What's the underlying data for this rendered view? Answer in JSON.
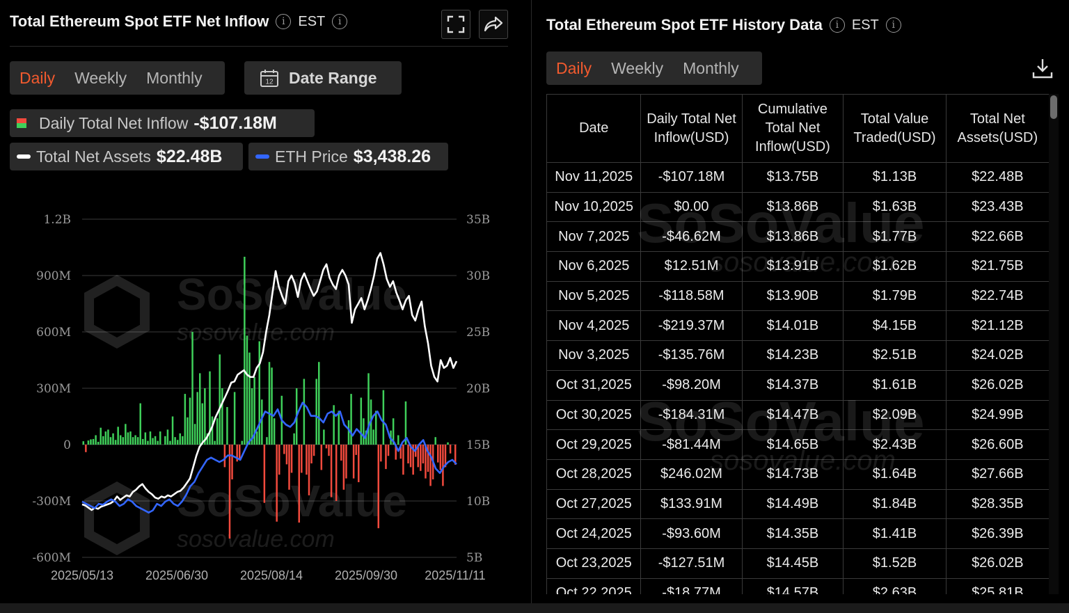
{
  "left": {
    "title": "Total Ethereum Spot ETF Net Inflow",
    "timezone": "EST",
    "tabs": [
      "Daily",
      "Weekly",
      "Monthly"
    ],
    "active_tab": "Daily",
    "date_range_label": "Date Range",
    "calendar_day": "12",
    "legend": {
      "inflow_label": "Daily Total Net Inflow",
      "inflow_value": "-$107.18M",
      "assets_label": "Total Net Assets",
      "assets_value": "$22.48B",
      "price_label": "ETH Price",
      "price_value": "$3,438.26"
    }
  },
  "right": {
    "title": "Total Ethereum Spot ETF History Data",
    "timezone": "EST",
    "tabs": [
      "Daily",
      "Weekly",
      "Monthly"
    ],
    "active_tab": "Daily",
    "columns": [
      "Date",
      "Daily Total Net Inflow(USD)",
      "Cumulative Total Net Inflow(USD)",
      "Total Value Traded(USD)",
      "Total Net Assets(USD)"
    ],
    "rows": [
      [
        "Nov 11,2025",
        "-$107.18M",
        "$13.75B",
        "$1.13B",
        "$22.48B"
      ],
      [
        "Nov 10,2025",
        "$0.00",
        "$13.86B",
        "$1.63B",
        "$23.43B"
      ],
      [
        "Nov 7,2025",
        "-$46.62M",
        "$13.86B",
        "$1.77B",
        "$22.66B"
      ],
      [
        "Nov 6,2025",
        "$12.51M",
        "$13.91B",
        "$1.62B",
        "$21.75B"
      ],
      [
        "Nov 5,2025",
        "-$118.58M",
        "$13.90B",
        "$1.79B",
        "$22.74B"
      ],
      [
        "Nov 4,2025",
        "-$219.37M",
        "$14.01B",
        "$4.15B",
        "$21.12B"
      ],
      [
        "Nov 3,2025",
        "-$135.76M",
        "$14.23B",
        "$2.51B",
        "$24.02B"
      ],
      [
        "Oct 31,2025",
        "-$98.20M",
        "$14.37B",
        "$1.61B",
        "$26.02B"
      ],
      [
        "Oct 30,2025",
        "-$184.31M",
        "$14.47B",
        "$2.09B",
        "$24.99B"
      ],
      [
        "Oct 29,2025",
        "-$81.44M",
        "$14.65B",
        "$2.43B",
        "$26.60B"
      ],
      [
        "Oct 28,2025",
        "$246.02M",
        "$14.73B",
        "$1.64B",
        "$27.66B"
      ],
      [
        "Oct 27,2025",
        "$133.91M",
        "$14.49B",
        "$1.84B",
        "$28.35B"
      ],
      [
        "Oct 24,2025",
        "-$93.60M",
        "$14.35B",
        "$1.41B",
        "$26.39B"
      ],
      [
        "Oct 23,2025",
        "-$127.51M",
        "$14.45B",
        "$1.52B",
        "$26.02B"
      ],
      [
        "Oct 22,2025",
        "-$18.77M",
        "$14.57B",
        "$2.63B",
        "$25.81B"
      ]
    ]
  },
  "watermark": {
    "brand": "SoSoValue",
    "url": "sosovalue.com"
  },
  "colors": {
    "accent": "#f25a2e",
    "pos_bar": "#3fd05a",
    "neg_bar": "#f24a3d",
    "assets_line": "#ffffff",
    "price_line": "#3366ff"
  },
  "chart_data": {
    "type": "bar",
    "x_ticks": [
      "2025/05/13",
      "2025/06/30",
      "2025/08/14",
      "2025/09/30",
      "2025/11/11"
    ],
    "y_left_ticks": [
      "1.2B",
      "900M",
      "600M",
      "300M",
      "0",
      "-300M",
      "-600M"
    ],
    "y_right_ticks": [
      "35B",
      "30B",
      "25B",
      "20B",
      "15B",
      "10B",
      "5B"
    ],
    "y_left_range": [
      -600,
      1200
    ],
    "y_right_range": [
      5,
      35
    ],
    "series": [
      {
        "name": "Daily Total Net Inflow",
        "type": "bar",
        "unit": "M USD",
        "values": [
          18,
          -40,
          22,
          28,
          30,
          50,
          15,
          90,
          45,
          70,
          80,
          40,
          60,
          25,
          95,
          50,
          40,
          110,
          65,
          70,
          40,
          50,
          40,
          220,
          30,
          65,
          20,
          70,
          35,
          45,
          20,
          70,
          0,
          45,
          80,
          20,
          150,
          40,
          25,
          60,
          45,
          270,
          145,
          250,
          600,
          110,
          280,
          380,
          220,
          300,
          60,
          390,
          150,
          20,
          140,
          480,
          300,
          -120,
          200,
          -500,
          -185,
          280,
          -90,
          -75,
          20,
          1000,
          580,
          490,
          300,
          360,
          70,
          550,
          240,
          -310,
          40,
          440,
          410,
          140,
          -410,
          -160,
          260,
          -50,
          -105,
          -240,
          -150,
          60,
          300,
          -415,
          -150,
          350,
          -160,
          -270,
          -100,
          -60,
          350,
          440,
          -135,
          80,
          -20,
          -60,
          -280,
          210,
          -300,
          180,
          -85,
          -240,
          -180,
          130,
          270,
          -180,
          -55,
          -200,
          250,
          140,
          75,
          380,
          240,
          80,
          180,
          -445,
          -90,
          290,
          -130,
          -60,
          75,
          140,
          -80,
          50,
          -75,
          -160,
          230,
          -100,
          -120,
          -160,
          -65,
          -120,
          -140,
          -100,
          -180,
          -145,
          -220,
          -185,
          40,
          -95,
          -135,
          -220,
          -120,
          12,
          -47,
          0,
          -107
        ]
      },
      {
        "name": "Total Net Assets",
        "type": "line",
        "unit": "B USD",
        "values": [
          9.7,
          9.6,
          9.4,
          9.2,
          9.4,
          9.3,
          9.5,
          9.6,
          9.7,
          9.8,
          10.0,
          10.4,
          10.1,
          10.3,
          10.5,
          10.4,
          10.8,
          11.0,
          11.3,
          11.5,
          11.1,
          10.8,
          10.6,
          10.3,
          10.2,
          10.4,
          10.3,
          10.5,
          10.4,
          10.6,
          10.8,
          10.9,
          11.2,
          11.6,
          12.0,
          13.0,
          14.0,
          14.8,
          15.2,
          15.5,
          16.0,
          16.6,
          17.4,
          18.0,
          18.6,
          19.2,
          19.8,
          20.5,
          20.6,
          21.2,
          21.4,
          21.6,
          21.2,
          21.0,
          21.0,
          21.8,
          22.2,
          23.2,
          25.0,
          26.5,
          28.5,
          30.4,
          29.0,
          28.2,
          27.5,
          29.5,
          30.0,
          29.3,
          28.1,
          29.6,
          30.2,
          29.5,
          28.8,
          28.2,
          28.6,
          29.5,
          30.5,
          31.0,
          29.8,
          29.2,
          28.8,
          30.0,
          30.5,
          30.0,
          29.2,
          25.8,
          27.0,
          27.5,
          28.0,
          27.0,
          27.8,
          28.8,
          30.0,
          31.5,
          32.0,
          31.0,
          29.7,
          29.0,
          29.5,
          28.5,
          27.8,
          27.0,
          27.8,
          28.2,
          26.5,
          26.0,
          27.0,
          27.7,
          25.5,
          24.0,
          22.0,
          21.0,
          20.6,
          22.5,
          21.8,
          22.0,
          22.7,
          21.8,
          22.4
        ],
        "sample_note": "sampled"
      },
      {
        "name": "ETH Price",
        "type": "line",
        "unit": "k USD",
        "values": [
          2.55,
          2.5,
          2.45,
          2.4,
          2.5,
          2.48,
          2.55,
          2.6,
          2.55,
          2.45,
          2.5,
          2.6,
          2.55,
          2.45,
          2.4,
          2.35,
          2.3,
          2.35,
          2.5,
          2.45,
          2.55,
          2.6,
          2.5,
          2.45,
          2.55,
          2.7,
          2.9,
          3.0,
          3.2,
          3.35,
          3.5,
          3.55,
          3.5,
          3.45,
          3.5,
          3.6,
          3.6,
          3.55,
          3.5,
          3.7,
          3.9,
          4.0,
          4.2,
          4.4,
          4.6,
          4.55,
          4.5,
          4.65,
          4.4,
          4.3,
          4.25,
          4.35,
          4.6,
          4.8,
          4.7,
          4.5,
          4.5,
          4.45,
          4.35,
          4.55,
          4.6,
          4.5,
          4.6,
          4.3,
          4.2,
          4.05,
          4.2,
          4.1,
          4.0,
          4.3,
          4.5,
          4.6,
          4.4,
          4.3,
          4.0,
          3.9,
          3.7,
          3.9,
          4.0,
          3.8,
          3.7,
          3.85,
          3.95,
          3.7,
          3.55,
          3.3,
          3.2,
          3.35,
          3.45,
          3.5,
          3.4
        ],
        "sample_note": "sampled"
      }
    ]
  }
}
